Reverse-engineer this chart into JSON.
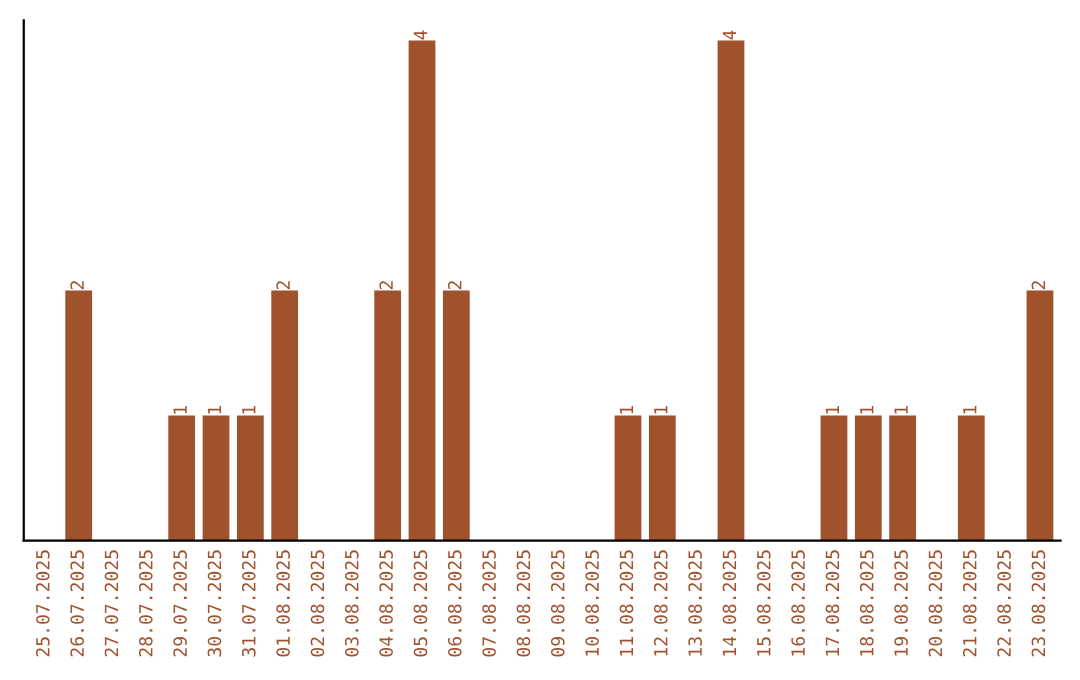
{
  "chart_data": {
    "type": "bar",
    "categories": [
      "25.07.2025",
      "26.07.2025",
      "27.07.2025",
      "28.07.2025",
      "29.07.2025",
      "30.07.2025",
      "31.07.2025",
      "01.08.2025",
      "02.08.2025",
      "03.08.2025",
      "04.08.2025",
      "05.08.2025",
      "06.08.2025",
      "07.08.2025",
      "08.08.2025",
      "09.08.2025",
      "10.08.2025",
      "11.08.2025",
      "12.08.2025",
      "13.08.2025",
      "14.08.2025",
      "15.08.2025",
      "16.08.2025",
      "17.08.2025",
      "18.08.2025",
      "19.08.2025",
      "20.08.2025",
      "21.08.2025",
      "22.08.2025",
      "23.08.2025"
    ],
    "values": [
      0,
      2,
      0,
      0,
      1,
      1,
      1,
      2,
      0,
      0,
      2,
      4,
      2,
      0,
      0,
      0,
      0,
      1,
      1,
      0,
      4,
      0,
      0,
      1,
      1,
      1,
      0,
      1,
      0,
      2
    ],
    "value_labels": [
      null,
      "2",
      null,
      null,
      "1",
      "1",
      "1",
      "2",
      null,
      null,
      "2",
      "4",
      "2",
      null,
      null,
      null,
      null,
      "1",
      "1",
      null,
      "4",
      null,
      null,
      "1",
      "1",
      "1",
      null,
      "1",
      null,
      "2"
    ],
    "color": "#a0522d",
    "tick_labels": "x",
    "grid": false
  }
}
